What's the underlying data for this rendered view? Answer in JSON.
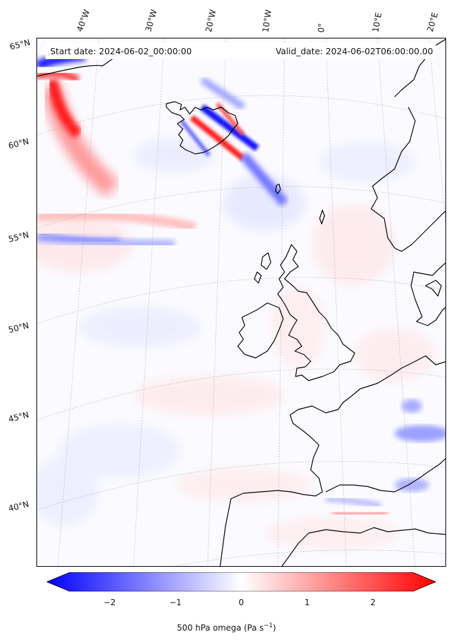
{
  "info": {
    "start_date": "Start date: 2024-06-02_00:00:00",
    "valid_date": "Valid_date: 2024-06-02T06:00:00.00"
  },
  "longitude_labels": [
    "40°W",
    "30°W",
    "20°W",
    "10°W",
    "0°",
    "10°E",
    "20°E"
  ],
  "latitude_labels": [
    "65°N",
    "60°N",
    "55°N",
    "50°N",
    "45°N",
    "40°N"
  ],
  "colorbar": {
    "label": "500 hPa omega (Pa s",
    "label_sup": "−1",
    "label_end": ")",
    "ticks": [
      "−2",
      "−1",
      "0",
      "1",
      "2"
    ],
    "range": [
      -2.6,
      2.6
    ],
    "cmap": "bwr",
    "colors": {
      "min": "#0000ff",
      "mid": "#ffffff",
      "max": "#ff0000"
    }
  },
  "map": {
    "projection": "conic",
    "field": "500 hPa omega",
    "coastline_color": "#000000",
    "gridlines": "dotted"
  }
}
